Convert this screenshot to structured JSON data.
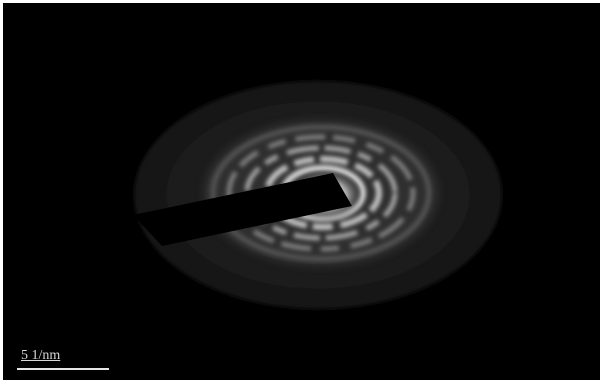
{
  "image": {
    "scale_bar": {
      "label": "5 1/nm"
    }
  }
}
